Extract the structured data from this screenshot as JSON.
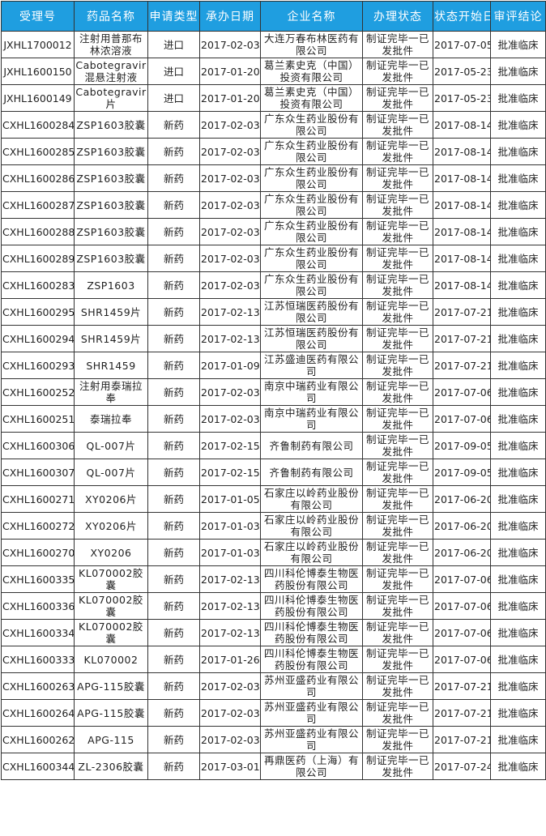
{
  "table": {
    "header_color": "#1f9ee0",
    "columns": [
      "受理号",
      "药品名称",
      "申请类型",
      "承办日期",
      "企业名称",
      "办理状态",
      "状态开始日",
      "审评结论"
    ],
    "rows": [
      [
        "JXHL1700012",
        "注射用普那布林浓溶液",
        "进口",
        "2017-02-03",
        "大连万春布林医药有限公司",
        "制证完毕一已发批件",
        "2017-07-05",
        "批准临床"
      ],
      [
        "JXHL1600150",
        "Cabotegravir混悬注射液",
        "进口",
        "2017-01-20",
        "葛兰素史克（中国）投资有限公司",
        "制证完毕一已发批件",
        "2017-05-23",
        "批准临床"
      ],
      [
        "JXHL1600149",
        "Cabotegravir片",
        "进口",
        "2017-01-20",
        "葛兰素史克（中国）投资有限公司",
        "制证完毕一已发批件",
        "2017-05-23",
        "批准临床"
      ],
      [
        "CXHL1600284",
        "ZSP1603胶囊",
        "新药",
        "2017-02-03",
        "广东众生药业股份有限公司",
        "制证完毕一已发批件",
        "2017-08-14",
        "批准临床"
      ],
      [
        "CXHL1600285",
        "ZSP1603胶囊",
        "新药",
        "2017-02-03",
        "广东众生药业股份有限公司",
        "制证完毕一已发批件",
        "2017-08-14",
        "批准临床"
      ],
      [
        "CXHL1600286",
        "ZSP1603胶囊",
        "新药",
        "2017-02-03",
        "广东众生药业股份有限公司",
        "制证完毕一已发批件",
        "2017-08-14",
        "批准临床"
      ],
      [
        "CXHL1600287",
        "ZSP1603胶囊",
        "新药",
        "2017-02-03",
        "广东众生药业股份有限公司",
        "制证完毕一已发批件",
        "2017-08-14",
        "批准临床"
      ],
      [
        "CXHL1600288",
        "ZSP1603胶囊",
        "新药",
        "2017-02-03",
        "广东众生药业股份有限公司",
        "制证完毕一已发批件",
        "2017-08-14",
        "批准临床"
      ],
      [
        "CXHL1600289",
        "ZSP1603胶囊",
        "新药",
        "2017-02-03",
        "广东众生药业股份有限公司",
        "制证完毕一已发批件",
        "2017-08-14",
        "批准临床"
      ],
      [
        "CXHL1600283",
        "ZSP1603",
        "新药",
        "2017-02-03",
        "广东众生药业股份有限公司",
        "制证完毕一已发批件",
        "2017-08-14",
        "批准临床"
      ],
      [
        "CXHL1600295",
        "SHR1459片",
        "新药",
        "2017-02-13",
        "江苏恒瑞医药股份有限公司",
        "制证完毕一已发批件",
        "2017-07-21",
        "批准临床"
      ],
      [
        "CXHL1600294",
        "SHR1459片",
        "新药",
        "2017-02-13",
        "江苏恒瑞医药股份有限公司",
        "制证完毕一已发批件",
        "2017-07-21",
        "批准临床"
      ],
      [
        "CXHL1600293",
        "SHR1459",
        "新药",
        "2017-01-09",
        "江苏盛迪医药有限公司",
        "制证完毕一已发批件",
        "2017-07-21",
        "批准临床"
      ],
      [
        "CXHL1600252",
        "注射用泰瑞拉奉",
        "新药",
        "2017-02-03",
        "南京中瑞药业有限公司",
        "制证完毕一已发批件",
        "2017-07-06",
        "批准临床"
      ],
      [
        "CXHL1600251",
        "泰瑞拉奉",
        "新药",
        "2017-02-03",
        "南京中瑞药业有限公司",
        "制证完毕一已发批件",
        "2017-07-06",
        "批准临床"
      ],
      [
        "CXHL1600306",
        "QL-007片",
        "新药",
        "2017-02-15",
        "齐鲁制药有限公司",
        "制证完毕一已发批件",
        "2017-09-05",
        "批准临床"
      ],
      [
        "CXHL1600307",
        "QL-007片",
        "新药",
        "2017-02-15",
        "齐鲁制药有限公司",
        "制证完毕一已发批件",
        "2017-09-05",
        "批准临床"
      ],
      [
        "CXHL1600271",
        "XY0206片",
        "新药",
        "2017-01-05",
        "石家庄以岭药业股份有限公司",
        "制证完毕一已发批件",
        "2017-06-20",
        "批准临床"
      ],
      [
        "CXHL1600272",
        "XY0206片",
        "新药",
        "2017-01-03",
        "石家庄以岭药业股份有限公司",
        "制证完毕一已发批件",
        "2017-06-20",
        "批准临床"
      ],
      [
        "CXHL1600270",
        "XY0206",
        "新药",
        "2017-01-03",
        "石家庄以岭药业股份有限公司",
        "制证完毕一已发批件",
        "2017-06-20",
        "批准临床"
      ],
      [
        "CXHL1600335",
        "KL070002胶囊",
        "新药",
        "2017-02-13",
        "四川科伦博泰生物医药股份有限公司",
        "制证完毕一已发批件",
        "2017-07-06",
        "批准临床"
      ],
      [
        "CXHL1600336",
        "KL070002胶囊",
        "新药",
        "2017-02-13",
        "四川科伦博泰生物医药股份有限公司",
        "制证完毕一已发批件",
        "2017-07-06",
        "批准临床"
      ],
      [
        "CXHL1600334",
        "KL070002胶囊",
        "新药",
        "2017-02-13",
        "四川科伦博泰生物医药股份有限公司",
        "制证完毕一已发批件",
        "2017-07-06",
        "批准临床"
      ],
      [
        "CXHL1600333",
        "KL070002",
        "新药",
        "2017-01-26",
        "四川科伦博泰生物医药股份有限公司",
        "制证完毕一已发批件",
        "2017-07-06",
        "批准临床"
      ],
      [
        "CXHL1600263",
        "APG-115胶囊",
        "新药",
        "2017-02-03",
        "苏州亚盛药业有限公司",
        "制证完毕一已发批件",
        "2017-07-21",
        "批准临床"
      ],
      [
        "CXHL1600264",
        "APG-115胶囊",
        "新药",
        "2017-02-03",
        "苏州亚盛药业有限公司",
        "制证完毕一已发批件",
        "2017-07-21",
        "批准临床"
      ],
      [
        "CXHL1600262",
        "APG-115",
        "新药",
        "2017-02-03",
        "苏州亚盛药业有限公司",
        "制证完毕一已发批件",
        "2017-07-21",
        "批准临床"
      ],
      [
        "CXHL1600344",
        "ZL-2306胶囊",
        "新药",
        "2017-03-01",
        "再鼎医药（上海）有限公司",
        "制证完毕一已发批件",
        "2017-07-24",
        "批准临床"
      ]
    ]
  }
}
